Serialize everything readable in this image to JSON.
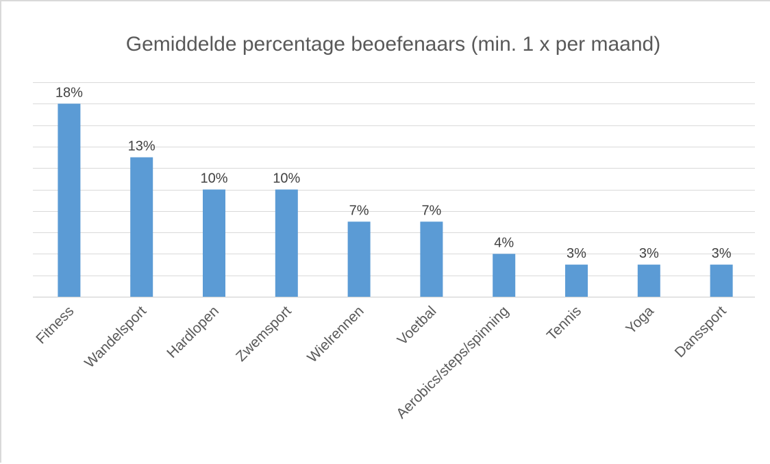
{
  "chart_data": {
    "type": "bar",
    "title": "Gemiddelde percentage beoefenaars (min. 1 x per maand)",
    "xlabel": "",
    "ylabel": "",
    "categories": [
      "Fitness",
      "Wandelsport",
      "Hardlopen",
      "Zwemsport",
      "Wielrennen",
      "Voetbal",
      "Aerobics/steps/spinning",
      "Tennis",
      "Yoga",
      "Danssport"
    ],
    "values": [
      18,
      13,
      10,
      10,
      7,
      7,
      4,
      3,
      3,
      3
    ],
    "data_labels": [
      "18%",
      "13%",
      "10%",
      "10%",
      "7%",
      "7%",
      "4%",
      "3%",
      "3%",
      "3%"
    ],
    "ylim": [
      0,
      20
    ],
    "y_gridline_step": 2,
    "y_axis_visible": false,
    "grid": true,
    "legend": "none",
    "bar_color": "#5b9bd5"
  }
}
